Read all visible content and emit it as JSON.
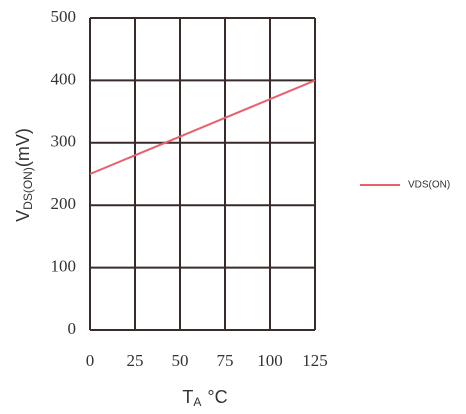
{
  "chart_data": {
    "type": "line",
    "xlabel": "T",
    "xlabel_sub": "A",
    "xlabel_unit": "°C",
    "ylabel": "V",
    "ylabel_sub": "DS(ON)",
    "ylabel_unit": "(mV)",
    "x": [
      0,
      125
    ],
    "series": [
      {
        "name": "VDS(ON)",
        "color": "#e8606c",
        "values": [
          250,
          400
        ]
      }
    ],
    "xlim": [
      0,
      125
    ],
    "xticks": [
      0,
      25,
      50,
      75,
      100,
      125
    ],
    "ylim": [
      0,
      500
    ],
    "yticks": [
      0,
      100,
      200,
      300,
      400,
      500
    ],
    "grid": true,
    "legend": "right"
  }
}
